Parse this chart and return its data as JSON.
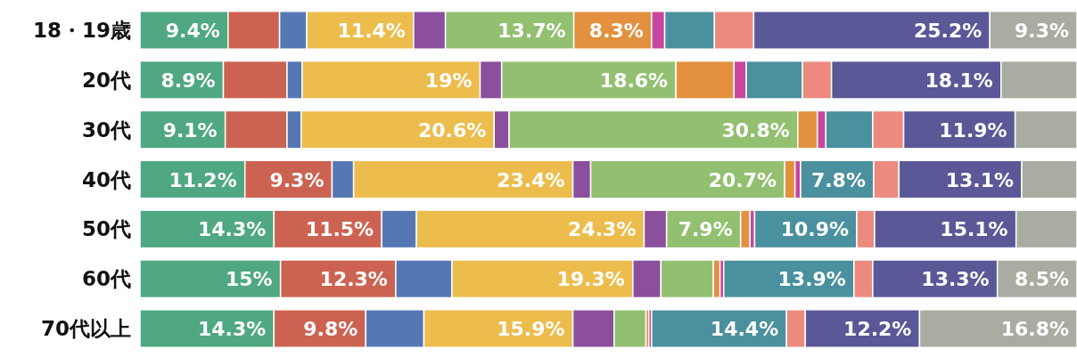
{
  "chart_data": {
    "type": "bar",
    "orientation": "horizontal",
    "stacked": true,
    "xlim": [
      0,
      100
    ],
    "tick_labels": "y",
    "categories": [
      "18・19歳",
      "20代",
      "30代",
      "40代",
      "50代",
      "60代",
      "70代以上"
    ],
    "series": [
      {
        "color": "#4fa882",
        "values": [
          9.4,
          8.9,
          9.1,
          11.2,
          14.3,
          15,
          14.3
        ],
        "value_labels": [
          "9.4%",
          "8.9%",
          "9.1%",
          "11.2%",
          "14.3%",
          "15%",
          "14.3%"
        ]
      },
      {
        "color": "#cc6352",
        "values": [
          5.5,
          6.8,
          6.6,
          9.3,
          11.5,
          12.3,
          9.8
        ],
        "value_labels": [
          null,
          null,
          null,
          "9.3%",
          "11.5%",
          "12.3%",
          "9.8%"
        ]
      },
      {
        "color": "#5578b5",
        "values": [
          2.9,
          1.6,
          1.5,
          2.3,
          3.7,
          6.0,
          6.2
        ],
        "value_labels": [
          null,
          null,
          null,
          null,
          null,
          null,
          null
        ]
      },
      {
        "color": "#ecbd4d",
        "values": [
          11.4,
          19,
          20.6,
          23.4,
          24.3,
          19.3,
          15.9
        ],
        "value_labels": [
          "11.4%",
          "19%",
          "20.6%",
          "23.4%",
          "24.3%",
          "19.3%",
          "15.9%"
        ]
      },
      {
        "color": "#8b4f9e",
        "values": [
          3.4,
          2.3,
          1.6,
          1.9,
          2.4,
          3.0,
          4.4
        ],
        "value_labels": [
          null,
          null,
          null,
          null,
          null,
          null,
          null
        ]
      },
      {
        "color": "#93c070",
        "values": [
          13.7,
          18.6,
          30.8,
          20.7,
          7.9,
          5.6,
          3.4
        ],
        "value_labels": [
          "13.7%",
          "18.6%",
          "30.8%",
          "20.7%",
          "7.9%",
          null,
          null
        ]
      },
      {
        "color": "#e3913f",
        "values": [
          8.3,
          6.2,
          2.1,
          1.1,
          1.0,
          0.7,
          0.3
        ],
        "value_labels": [
          "8.3%",
          null,
          null,
          null,
          null,
          null,
          null
        ]
      },
      {
        "color": "#c846a0",
        "values": [
          1.4,
          1.3,
          0.9,
          0.6,
          0.5,
          0.4,
          0.3
        ],
        "value_labels": [
          null,
          null,
          null,
          null,
          null,
          null,
          null
        ]
      },
      {
        "color": "#4a909e",
        "values": [
          5.3,
          6.0,
          5.0,
          7.8,
          10.9,
          13.9,
          14.4
        ],
        "value_labels": [
          null,
          null,
          null,
          "7.8%",
          "10.9%",
          "13.9%",
          "14.4%"
        ]
      },
      {
        "color": "#ec8a80",
        "values": [
          4.2,
          3.1,
          3.3,
          2.7,
          1.9,
          2.0,
          2.0
        ],
        "value_labels": [
          null,
          null,
          null,
          null,
          null,
          null,
          null
        ]
      },
      {
        "color": "#5a5896",
        "values": [
          25.2,
          18.1,
          11.9,
          13.1,
          15.1,
          13.3,
          12.2
        ],
        "value_labels": [
          "25.2%",
          "18.1%",
          "11.9%",
          "13.1%",
          "15.1%",
          "13.3%",
          "12.2%"
        ]
      },
      {
        "color": "#a9aca0",
        "values": [
          9.3,
          8.1,
          6.6,
          5.9,
          6.5,
          8.5,
          16.8
        ],
        "value_labels": [
          "9.3%",
          null,
          null,
          null,
          null,
          "8.5%",
          "16.8%"
        ]
      }
    ]
  }
}
